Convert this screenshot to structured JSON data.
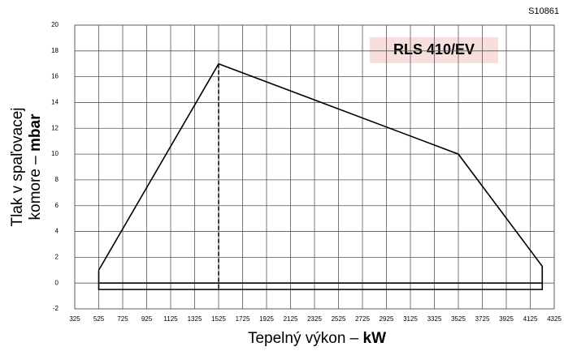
{
  "chart_data": {
    "type": "line",
    "code": "S10861",
    "model": "RLS 410/EV",
    "ylabel_line1": "Tlak v spaľovacej",
    "ylabel_line2": "komore – ",
    "ylabel_unit": "mbar",
    "xlabel": "Tepelný výkon – ",
    "xlabel_unit": "kW",
    "xlim": [
      325,
      4325
    ],
    "xticks": [
      325,
      525,
      725,
      925,
      1125,
      1325,
      1525,
      1725,
      1925,
      2125,
      2325,
      2525,
      2725,
      2925,
      3125,
      3325,
      3525,
      3725,
      3925,
      4125,
      4325
    ],
    "ylim": [
      -2,
      20
    ],
    "yticks": [
      -2,
      0,
      2,
      4,
      6,
      8,
      10,
      12,
      14,
      16,
      18,
      20
    ],
    "grid": true,
    "series": [
      {
        "color": "#000000",
        "x": [
          525,
          1525,
          3525,
          4225,
          4225,
          525,
          525
        ],
        "values": [
          1,
          17,
          10,
          1.3,
          -0.5,
          -0.5,
          1
        ]
      },
      {
        "color": "#000000",
        "x": [
          525,
          4225
        ],
        "values": [
          0,
          0
        ]
      },
      {
        "color": "#000000",
        "dashed": true,
        "x": [
          1525,
          1525
        ],
        "values": [
          17,
          -0.5
        ]
      }
    ]
  }
}
